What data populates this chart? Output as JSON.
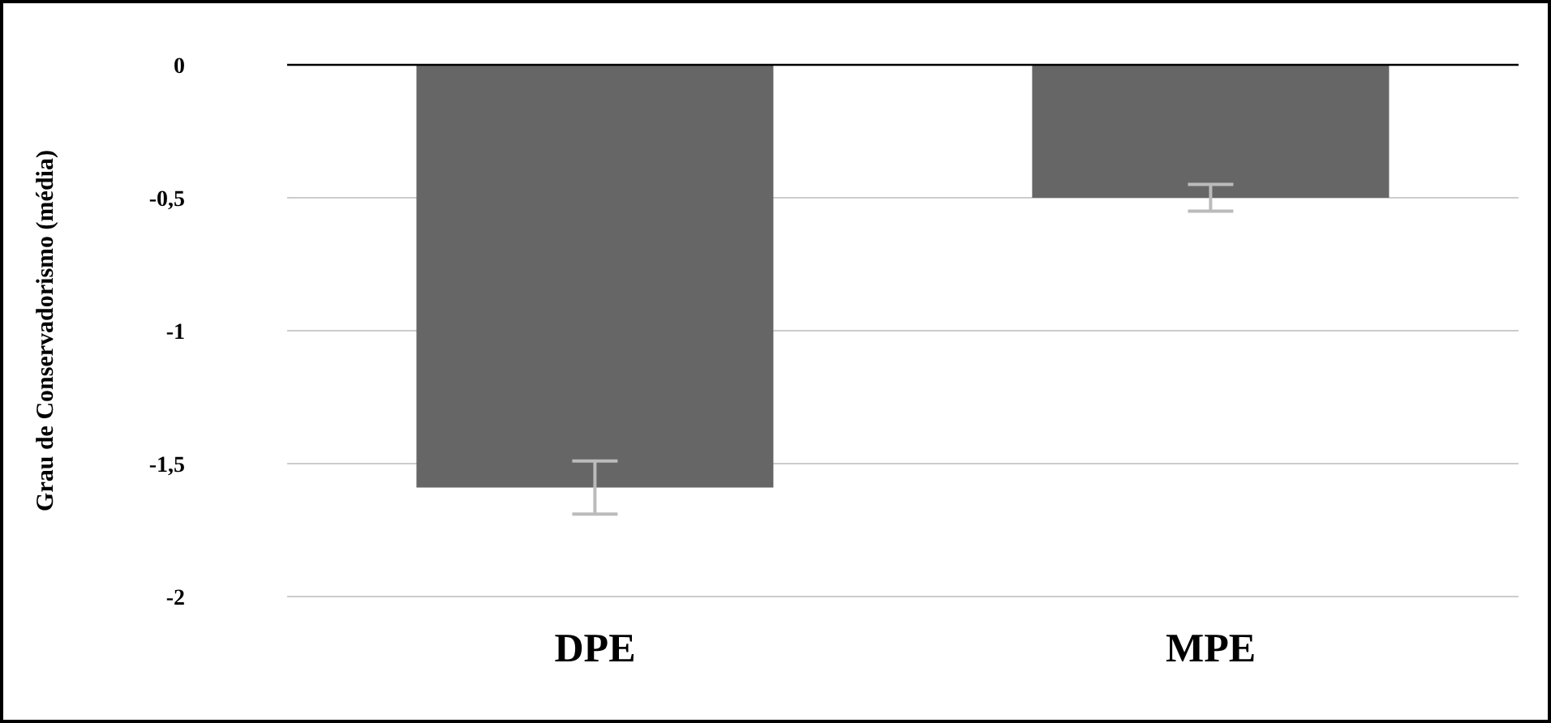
{
  "chart_data": {
    "type": "bar",
    "ylabel": "Grau de Conservadorismo (média)",
    "categories": [
      "DPE",
      "MPE"
    ],
    "values": [
      -1.59,
      -0.5
    ],
    "errors": [
      0.1,
      0.05
    ],
    "color": "#666666",
    "ylim": [
      -2,
      0
    ],
    "yticks": [
      {
        "value": 0,
        "label": "0"
      },
      {
        "value": -0.5,
        "label": "-0,5"
      },
      {
        "value": -1,
        "label": "-1"
      },
      {
        "value": -1.5,
        "label": "-1,5"
      },
      {
        "value": -2,
        "label": "-2"
      }
    ],
    "grid": "y"
  }
}
